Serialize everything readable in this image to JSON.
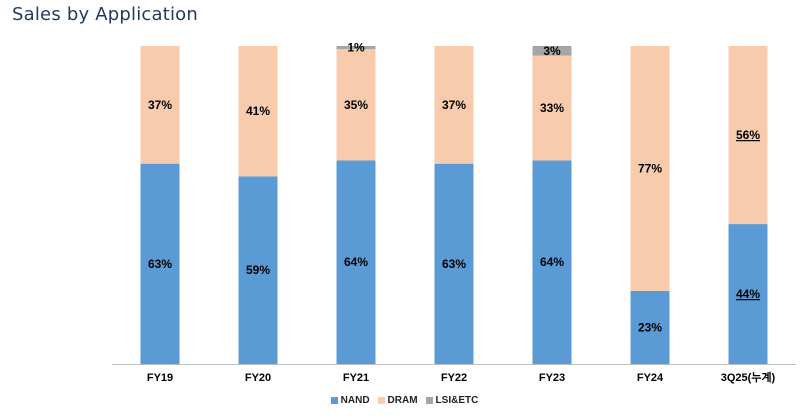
{
  "title": "Sales by Application",
  "colors": {
    "nand": "#5b9bd5",
    "dram": "#f8cbad",
    "lsi": "#a5a5a5",
    "axis": "#bfbfbf"
  },
  "chart_data": {
    "type": "bar",
    "stacked": true,
    "percent": true,
    "title": "Sales by Application",
    "categories": [
      "FY19",
      "FY20",
      "FY21",
      "FY22",
      "FY23",
      "FY24",
      "3Q25(누계)"
    ],
    "ylim": [
      0,
      100
    ],
    "grid": false,
    "legend_position": "bottom",
    "series": [
      {
        "name": "NAND",
        "color": "#5b9bd5",
        "values": [
          63,
          59,
          64,
          63,
          64,
          23,
          44
        ],
        "labels": [
          "63%",
          "59%",
          "64%",
          "63%",
          "64%",
          "23%",
          "44%"
        ]
      },
      {
        "name": "DRAM",
        "color": "#f8cbad",
        "values": [
          37,
          41,
          35,
          37,
          33,
          77,
          56
        ],
        "labels": [
          "37%",
          "41%",
          "35%",
          "37%",
          "33%",
          "77%",
          "56%"
        ]
      },
      {
        "name": "LSI&ETC",
        "color": "#a5a5a5",
        "values": [
          0,
          0,
          1,
          0,
          3,
          0,
          0
        ],
        "labels": [
          "",
          "",
          "1%",
          "",
          "3%",
          "",
          ""
        ]
      }
    ],
    "underlined_category": "3Q25(누계)"
  }
}
